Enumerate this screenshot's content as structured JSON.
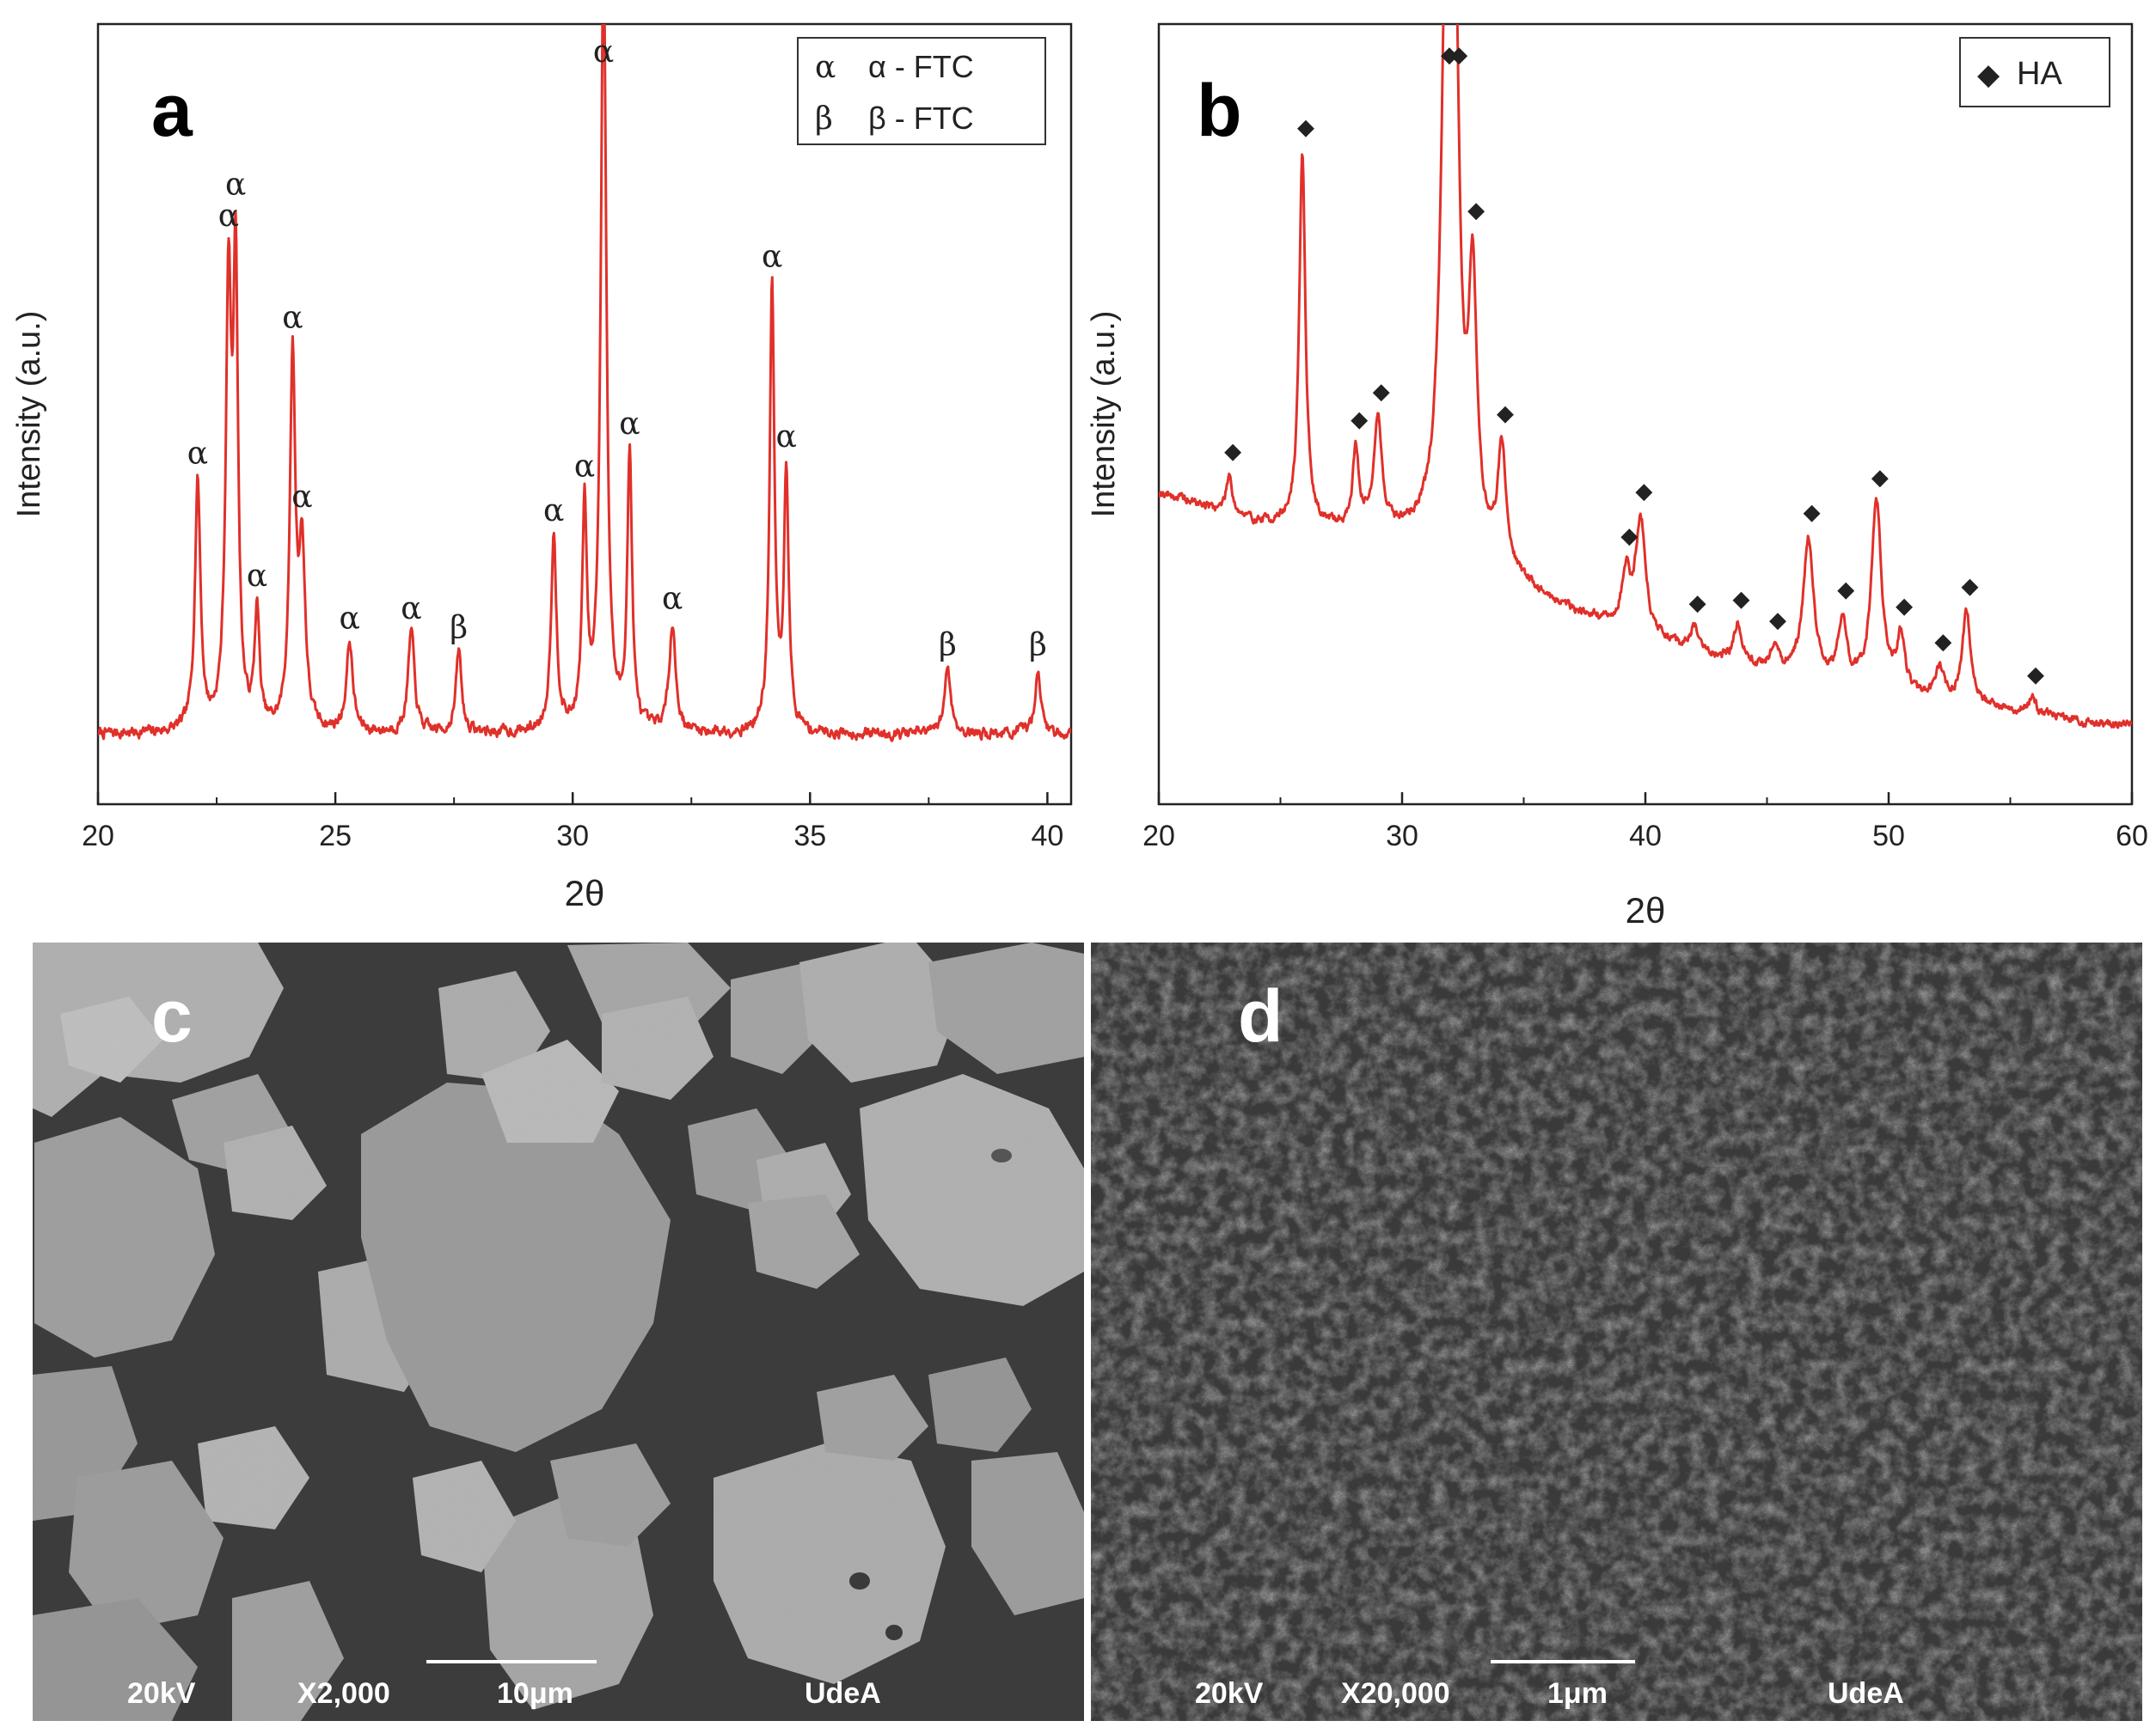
{
  "chart_data": [
    {
      "type": "line",
      "panel": "a",
      "xlabel": "2θ",
      "ylabel": "Intensity (a.u.)",
      "xlim": [
        20,
        40.5
      ],
      "ylim": [
        0,
        100
      ],
      "xticks": [
        20,
        25,
        30,
        35,
        40
      ],
      "ytick_labels": false,
      "grid": false,
      "legend_position": "top-right",
      "legend": [
        {
          "symbol": "α",
          "label": "α - FTC"
        },
        {
          "symbol": "β",
          "label": "β - FTC"
        }
      ],
      "series": [
        {
          "color": "#e0302a",
          "baseline": 9,
          "peaks": [
            {
              "x": 22.1,
              "y": 32,
              "w": 0.07,
              "label": "α"
            },
            {
              "x": 22.75,
              "y": 55,
              "w": 0.07,
              "label": "α"
            },
            {
              "x": 22.9,
              "y": 57,
              "w": 0.06,
              "label": "α"
            },
            {
              "x": 23.35,
              "y": 15,
              "w": 0.06,
              "label": "α"
            },
            {
              "x": 24.1,
              "y": 47,
              "w": 0.07,
              "label": "α"
            },
            {
              "x": 24.3,
              "y": 22,
              "w": 0.08,
              "label": "α"
            },
            {
              "x": 25.3,
              "y": 11.5,
              "w": 0.08,
              "label": "α"
            },
            {
              "x": 26.6,
              "y": 13,
              "w": 0.08,
              "label": "α"
            },
            {
              "x": 27.6,
              "y": 10.5,
              "w": 0.07,
              "label": "β"
            },
            {
              "x": 29.6,
              "y": 25,
              "w": 0.07,
              "label": "α"
            },
            {
              "x": 30.25,
              "y": 28,
              "w": 0.06,
              "label": "α"
            },
            {
              "x": 30.65,
              "y": 100,
              "w": 0.07,
              "label": "α"
            },
            {
              "x": 31.2,
              "y": 35,
              "w": 0.06,
              "label": "α"
            },
            {
              "x": 32.1,
              "y": 14,
              "w": 0.08,
              "label": "α"
            },
            {
              "x": 34.2,
              "y": 57,
              "w": 0.06,
              "label": "α"
            },
            {
              "x": 34.5,
              "y": 33,
              "w": 0.06,
              "label": "α"
            },
            {
              "x": 37.9,
              "y": 8.5,
              "w": 0.08,
              "label": "β"
            },
            {
              "x": 39.8,
              "y": 8.5,
              "w": 0.07,
              "label": "β"
            }
          ]
        }
      ]
    },
    {
      "type": "line",
      "panel": "b",
      "xlabel": "2θ",
      "ylabel": "Intensity (a.u.)",
      "xlim": [
        20,
        60
      ],
      "ylim": [
        0,
        100
      ],
      "xticks": [
        20,
        30,
        40,
        50,
        60
      ],
      "ytick_labels": false,
      "grid": false,
      "legend_position": "top-right",
      "legend": [
        {
          "symbol": "◆",
          "label": "HA"
        }
      ],
      "series": [
        {
          "color": "#e0302a",
          "background": [
            [
              20,
              40
            ],
            [
              24,
              36
            ],
            [
              28,
              35
            ],
            [
              32,
              34
            ],
            [
              36,
              26
            ],
            [
              40,
              21
            ],
            [
              45,
              17
            ],
            [
              50,
              14
            ],
            [
              55,
              12
            ],
            [
              59,
              10
            ]
          ],
          "peaks": [
            {
              "x": 22.9,
              "y": 5,
              "w": 0.15,
              "label": "◆"
            },
            {
              "x": 25.9,
              "y": 48,
              "w": 0.15,
              "label": "◆"
            },
            {
              "x": 28.1,
              "y": 10,
              "w": 0.15,
              "label": "◆"
            },
            {
              "x": 29.0,
              "y": 14,
              "w": 0.2,
              "label": "◆"
            },
            {
              "x": 31.8,
              "y": 68,
              "w": 0.25,
              "label": "◆"
            },
            {
              "x": 32.2,
              "y": 55,
              "w": 0.2,
              "label": "◆"
            },
            {
              "x": 32.9,
              "y": 33,
              "w": 0.2,
              "label": "◆"
            },
            {
              "x": 34.1,
              "y": 15,
              "w": 0.2,
              "label": "◆"
            },
            {
              "x": 39.2,
              "y": 7,
              "w": 0.2,
              "label": "◆"
            },
            {
              "x": 39.8,
              "y": 15,
              "w": 0.25,
              "label": "◆"
            },
            {
              "x": 42.0,
              "y": 3,
              "w": 0.2,
              "label": "◆"
            },
            {
              "x": 43.8,
              "y": 5,
              "w": 0.2,
              "label": "◆"
            },
            {
              "x": 45.3,
              "y": 3,
              "w": 0.2,
              "label": "◆"
            },
            {
              "x": 46.7,
              "y": 18,
              "w": 0.25,
              "label": "◆"
            },
            {
              "x": 48.1,
              "y": 8,
              "w": 0.2,
              "label": "◆"
            },
            {
              "x": 49.5,
              "y": 24,
              "w": 0.25,
              "label": "◆"
            },
            {
              "x": 50.5,
              "y": 7,
              "w": 0.2,
              "label": "◆"
            },
            {
              "x": 52.1,
              "y": 4,
              "w": 0.2,
              "label": "◆"
            },
            {
              "x": 53.2,
              "y": 12,
              "w": 0.2,
              "label": "◆"
            },
            {
              "x": 55.9,
              "y": 2,
              "w": 0.2,
              "label": "◆"
            }
          ]
        }
      ]
    }
  ],
  "panels": {
    "a": {
      "letter": "a"
    },
    "b": {
      "letter": "b"
    },
    "c": {
      "letter": "c",
      "voltage": "20kV",
      "magnification": "X2,000",
      "scale_bar": "10μm",
      "institution": "UdeA"
    },
    "d": {
      "letter": "d",
      "voltage": "20kV",
      "magnification": "X20,000",
      "scale_bar": "1μm",
      "institution": "UdeA"
    }
  },
  "colors": {
    "trace": "#e0302a",
    "sem_background": "#3a3a3a",
    "sem_particle": "#a8a8a8"
  }
}
